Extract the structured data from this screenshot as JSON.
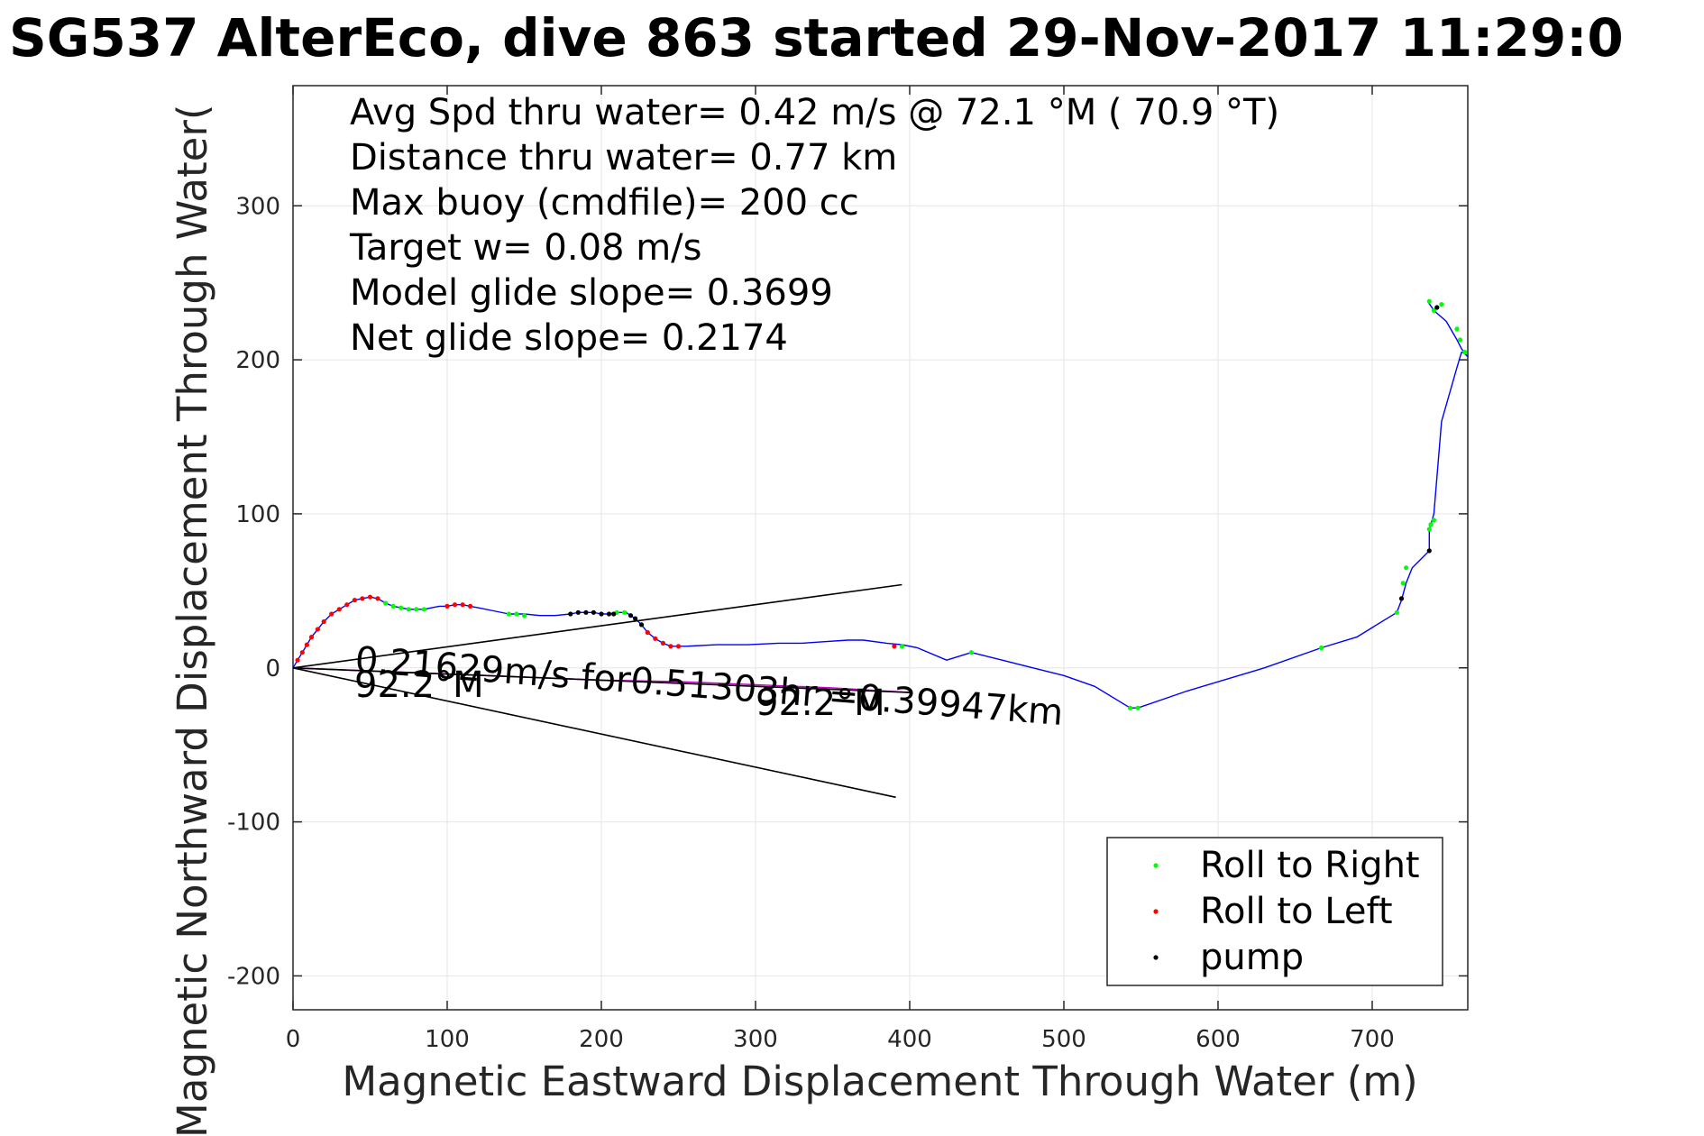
{
  "chart_data": {
    "type": "line",
    "title": "SG537 AlterEco, dive 863 started 29-Nov-2017 11:29:0",
    "xlabel": "Magnetic Eastward Displacement Through Water (m)",
    "ylabel": "Magnetic Northward Displacement Through Water(",
    "xlim": [
      0,
      762
    ],
    "ylim": [
      -222,
      378
    ],
    "xticks": [
      0,
      100,
      200,
      300,
      400,
      500,
      600,
      700
    ],
    "yticks": [
      -200,
      -100,
      0,
      100,
      200,
      300
    ],
    "grid": true,
    "stats": [
      "Avg Spd thru water=  0.42 m/s @  72.1 °M ( 70.9 °T)",
      "Distance thru water=  0.77 km",
      "Max buoy (cmdfile)= 200 cc",
      "Target w= 0.08 m/s",
      "Model glide slope= 0.3699",
      "Net glide slope= 0.2174"
    ],
    "annotations": {
      "current_text": "0.21629m/s for0.51303hr =0.39947km",
      "heading_left": "92.2°M",
      "heading_right": "92.2°M"
    },
    "legend": {
      "placement": "bottom-right",
      "entries": [
        {
          "label": "Roll to Right",
          "color": "#00ff00"
        },
        {
          "label": "Roll to Left",
          "color": "#ff0000"
        },
        {
          "label": "pump",
          "color": "#000000"
        }
      ]
    },
    "series": [
      {
        "role": "track",
        "color": "#0000ff",
        "x": [
          0,
          3,
          6,
          9,
          12,
          16,
          20,
          25,
          30,
          35,
          40,
          45,
          50,
          55,
          60,
          65,
          70,
          75,
          80,
          85,
          90,
          95,
          100,
          105,
          110,
          115,
          120,
          130,
          140,
          150,
          160,
          170,
          180,
          185,
          190,
          195,
          200,
          205,
          210,
          213,
          216,
          219,
          222,
          226,
          230,
          235,
          240,
          245,
          250,
          255,
          275,
          295,
          315,
          330,
          345,
          360,
          370,
          385,
          395,
          405,
          424,
          440,
          460,
          480,
          500,
          520,
          543,
          548,
          580,
          630,
          667,
          690,
          716,
          719,
          722,
          726,
          737,
          737,
          738,
          740,
          745,
          755,
          757,
          758,
          760,
          762,
          758,
          755,
          748,
          740,
          736
        ],
        "y": [
          0,
          5,
          10,
          15,
          20,
          25,
          30,
          35,
          38,
          41,
          44,
          45,
          46,
          45,
          42,
          40,
          39,
          38,
          38,
          38,
          39,
          40,
          40,
          41,
          41,
          40,
          39,
          37,
          35,
          35,
          34,
          34,
          35,
          36,
          36,
          36,
          35,
          35,
          36,
          36,
          36,
          34,
          32,
          28,
          23,
          19,
          16,
          14,
          14,
          14,
          15,
          15,
          16,
          16,
          17,
          18,
          18,
          16,
          15,
          13,
          5,
          10,
          5,
          0,
          -5,
          -12,
          -26,
          -26,
          -15,
          0,
          13,
          20,
          36,
          44,
          55,
          65,
          76,
          90,
          93,
          100,
          160,
          195,
          202,
          205,
          204,
          202,
          207,
          213,
          225,
          232,
          238
        ]
      },
      {
        "role": "depth-averaged-current",
        "color": "#cc00cc",
        "x": [
          0,
          50,
          100,
          150,
          200,
          250,
          300,
          350,
          400
        ],
        "y": [
          0,
          -2,
          -4,
          -6,
          -8,
          -9,
          -11,
          -13,
          -16
        ]
      },
      {
        "role": "glide-cone-upper",
        "color": "#000000",
        "x": [
          0,
          395
        ],
        "y": [
          0,
          54
        ]
      },
      {
        "role": "glide-cone-lower",
        "color": "#000000",
        "x": [
          0,
          391
        ],
        "y": [
          0,
          -84
        ]
      },
      {
        "role": "heading-line",
        "color": "#000000",
        "x": [
          0,
          400
        ],
        "y": [
          0,
          -16
        ]
      },
      {
        "name": "Roll to Right",
        "color": "#00ff00",
        "x": [
          60,
          65,
          70,
          75,
          80,
          85,
          140,
          145,
          150,
          210,
          215,
          395,
          440,
          543,
          548,
          667,
          716,
          720,
          722,
          737,
          738,
          740,
          740,
          745,
          755,
          757,
          760,
          737
        ],
        "y": [
          42,
          40,
          39,
          38,
          38,
          38,
          35,
          35,
          34,
          36,
          36,
          14,
          10,
          -26,
          -26,
          13,
          36,
          55,
          65,
          90,
          93,
          96,
          232,
          236,
          220,
          213,
          205,
          238
        ]
      },
      {
        "name": "Roll to Left",
        "color": "#ff0000",
        "x": [
          3,
          6,
          9,
          12,
          16,
          20,
          25,
          30,
          35,
          40,
          45,
          50,
          55,
          100,
          105,
          110,
          115,
          230,
          235,
          240,
          245,
          250,
          390
        ],
        "y": [
          5,
          10,
          15,
          20,
          25,
          30,
          35,
          38,
          41,
          44,
          45,
          46,
          45,
          40,
          41,
          41,
          40,
          23,
          19,
          16,
          14,
          14,
          14
        ]
      },
      {
        "name": "pump",
        "color": "#000000",
        "x": [
          180,
          185,
          190,
          195,
          200,
          205,
          208,
          219,
          222,
          226,
          719,
          737,
          742
        ],
        "y": [
          35,
          36,
          36,
          36,
          35,
          35,
          35,
          34,
          32,
          28,
          45,
          76,
          234
        ]
      }
    ]
  }
}
